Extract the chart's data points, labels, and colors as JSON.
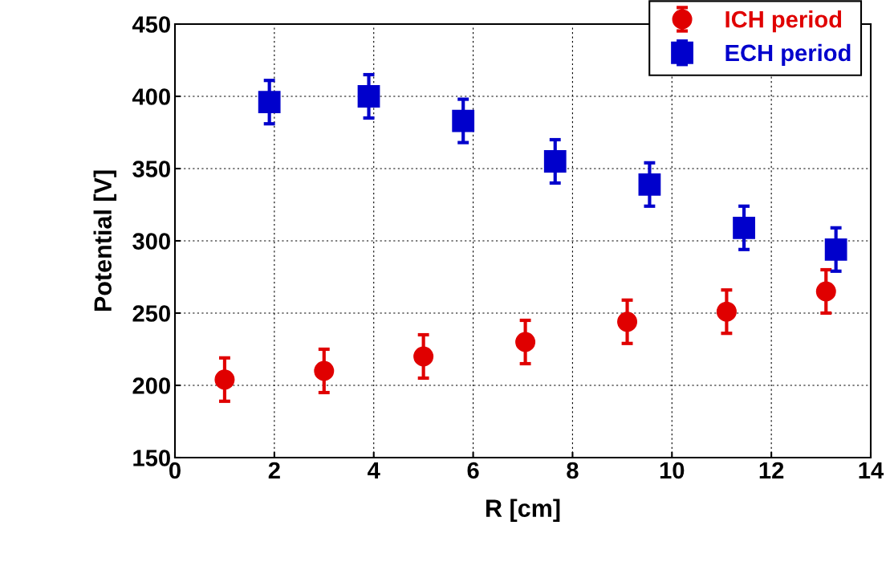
{
  "chart_data": {
    "type": "scatter",
    "xlabel": "R [cm]",
    "ylabel": "Potential [V]",
    "xlim": [
      0,
      14
    ],
    "xticks": [
      0,
      2,
      4,
      6,
      8,
      10,
      12,
      14
    ],
    "ylim": [
      150,
      450
    ],
    "yticks": [
      150,
      200,
      250,
      300,
      350,
      400,
      450
    ],
    "grid": true,
    "legend": "top right",
    "series": [
      {
        "name": "ICH period",
        "color": "#e00000",
        "marker": "circle",
        "x": [
          1.0,
          3.0,
          5.0,
          7.05,
          9.1,
          11.1,
          13.1
        ],
        "values": [
          204,
          210,
          220,
          230,
          244,
          251,
          265
        ],
        "errors": [
          15,
          15,
          15,
          15,
          15,
          15,
          15
        ]
      },
      {
        "name": "ECH period",
        "color": "#0000cc",
        "marker": "square",
        "x": [
          1.9,
          3.9,
          5.8,
          7.65,
          9.55,
          11.45,
          13.3
        ],
        "values": [
          396,
          400,
          383,
          355,
          339,
          309,
          294
        ],
        "errors": [
          15,
          15,
          15,
          15,
          15,
          15,
          15
        ]
      }
    ]
  }
}
